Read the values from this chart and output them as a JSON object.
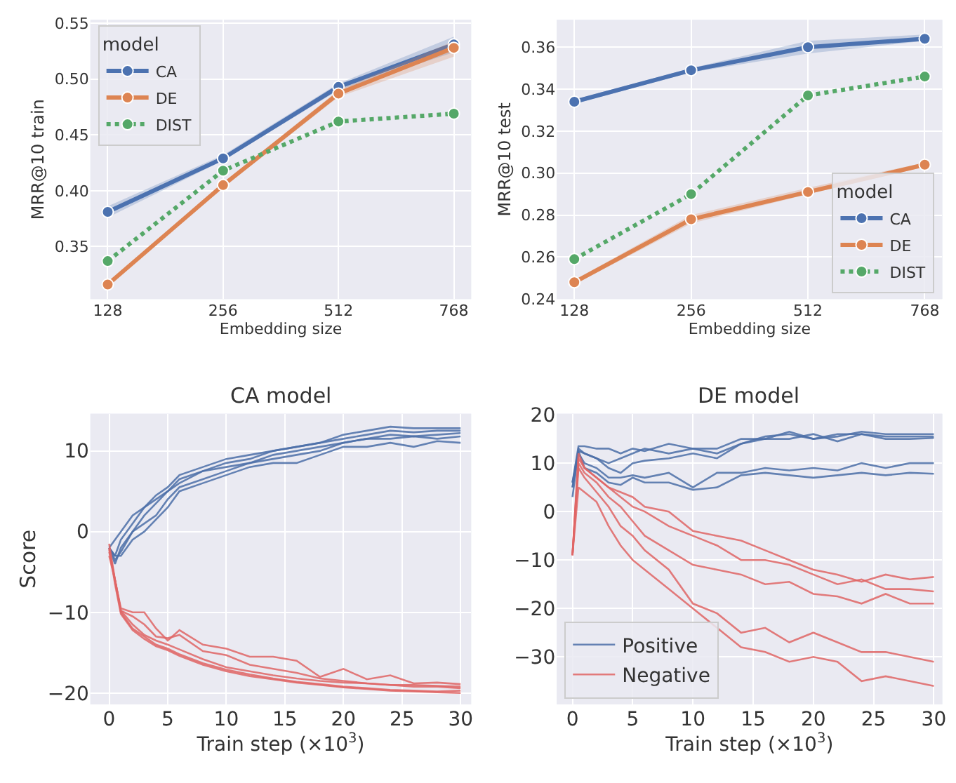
{
  "chart_data": [
    {
      "type": "line",
      "xlabel": "Embedding size",
      "ylabel": "MRR@10 train",
      "categories": [
        "128",
        "256",
        "512",
        "768"
      ],
      "ylim": [
        0.303,
        0.553
      ],
      "yticks": [
        0.35,
        {
          "value": 0.4,
          "label": "0.40"
        },
        0.45,
        {
          "value": 0.5,
          "label": "0.50"
        },
        0.55
      ],
      "grid": true,
      "marker": "circle",
      "legend": "top left",
      "legend_title": "model",
      "series": [
        {
          "name": "CA",
          "color": "#4c72b0",
          "line_style": "solid",
          "values": [
            0.381,
            0.429,
            0.493,
            0.531
          ],
          "lower": [
            0.376,
            0.427,
            0.49,
            0.524
          ],
          "upper": [
            0.386,
            0.432,
            0.496,
            0.538
          ]
        },
        {
          "name": "DE",
          "color": "#dd8452",
          "line_style": "solid",
          "values": [
            0.316,
            0.405,
            0.487,
            0.528
          ],
          "lower": [
            0.314,
            0.403,
            0.484,
            0.52
          ],
          "upper": [
            0.318,
            0.407,
            0.49,
            0.534
          ]
        },
        {
          "name": "DIST",
          "color": "#55a868",
          "line_style": "dotted",
          "values": [
            0.337,
            0.418,
            0.462,
            0.469
          ]
        }
      ]
    },
    {
      "type": "line",
      "xlabel": "Embedding size",
      "ylabel": "MRR@10 test",
      "categories": [
        "128",
        "256",
        "512",
        "768"
      ],
      "ylim": [
        0.24,
        0.373
      ],
      "yticks": [
        0.24,
        0.26,
        0.28,
        {
          "value": 0.3,
          "label": "0.30"
        },
        0.32,
        0.34,
        0.36
      ],
      "grid": true,
      "marker": "circle",
      "legend": "bottom right",
      "legend_title": "model",
      "series": [
        {
          "name": "CA",
          "color": "#4c72b0",
          "line_style": "solid",
          "values": [
            0.334,
            0.349,
            0.36,
            0.364
          ],
          "lower": [
            0.333,
            0.348,
            0.357,
            0.363
          ],
          "upper": [
            0.335,
            0.35,
            0.363,
            0.366
          ]
        },
        {
          "name": "DE",
          "color": "#dd8452",
          "line_style": "solid",
          "values": [
            0.248,
            0.278,
            0.291,
            0.304
          ],
          "lower": [
            0.247,
            0.276,
            0.29,
            0.303
          ],
          "upper": [
            0.249,
            0.28,
            0.293,
            0.305
          ]
        },
        {
          "name": "DIST",
          "color": "#55a868",
          "line_style": "dotted",
          "values": [
            0.259,
            0.29,
            0.337,
            0.346
          ]
        }
      ]
    },
    {
      "type": "line",
      "title": "CA model",
      "xlabel": "Train step (×10$^{3}$)",
      "ylabel": "Score",
      "x": [
        0,
        0.5,
        1,
        2,
        3,
        4,
        5,
        6,
        8,
        10,
        12,
        14,
        16,
        18,
        20,
        22,
        24,
        26,
        28,
        30
      ],
      "xlim": [
        -1.6,
        30.9
      ],
      "xticks": [
        0,
        5,
        10,
        15,
        20,
        25,
        30
      ],
      "ylim": [
        -21.4,
        14.6
      ],
      "yticks": [
        -20,
        -10,
        0,
        10
      ],
      "grid": true,
      "series": [
        {
          "color": "#4c6fa8",
          "values": [
            -2,
            -1,
            0,
            2,
            3,
            4.5,
            5.5,
            7,
            8,
            9,
            9.5,
            10,
            10.5,
            11,
            12,
            12.5,
            13,
            12.8,
            12.8,
            12.8
          ]
        },
        {
          "color": "#4c6fa8",
          "values": [
            -2,
            -3,
            -1,
            1,
            3,
            4,
            5,
            6.5,
            7.5,
            8.5,
            9,
            10,
            10.5,
            11,
            11.5,
            12,
            12.5,
            12.3,
            12.5,
            12.5
          ]
        },
        {
          "color": "#4c6fa8",
          "values": [
            -2,
            -4,
            -2,
            0,
            2,
            3.5,
            5,
            6,
            7.5,
            8,
            8.5,
            9.5,
            10,
            10.5,
            11,
            11.5,
            12,
            11.8,
            12,
            12.2
          ]
        },
        {
          "color": "#4c6fa8",
          "values": [
            -2,
            -3.5,
            -2.5,
            0,
            1,
            2,
            4,
            5.5,
            6.5,
            7.5,
            8.5,
            9,
            9.5,
            10,
            11,
            11.5,
            11.5,
            11.8,
            11.5,
            11.8
          ]
        },
        {
          "color": "#4c6fa8",
          "values": [
            -2,
            -3,
            -3,
            -1,
            0,
            1.5,
            3,
            5,
            6,
            7,
            8,
            8.5,
            8.5,
            9.5,
            10.5,
            10.5,
            11,
            10.5,
            11.2,
            11
          ]
        },
        {
          "color": "#e06666",
          "values": [
            -2.5,
            -6,
            -10,
            -12,
            -13,
            -14,
            -14.5,
            -15.2,
            -16.3,
            -17.1,
            -17.7,
            -18.2,
            -18.6,
            -18.9,
            -19.2,
            -19.4,
            -19.6,
            -19.7,
            -19.8,
            -19.7
          ]
        },
        {
          "color": "#e06666",
          "values": [
            -2,
            -6.5,
            -10.2,
            -12.2,
            -13.3,
            -14.2,
            -14.7,
            -15.4,
            -16.5,
            -17.3,
            -17.9,
            -18.3,
            -18.7,
            -19,
            -19.3,
            -19.5,
            -19.7,
            -19.8,
            -19.9,
            -20
          ]
        },
        {
          "color": "#e06666",
          "values": [
            -3,
            -6,
            -9.8,
            -11.5,
            -12.8,
            -13.5,
            -14,
            -14.6,
            -15.8,
            -16.8,
            -17.3,
            -17.8,
            -18.2,
            -18.5,
            -18.7,
            -18.8,
            -19,
            -19,
            -19.1,
            -19.2
          ]
        },
        {
          "color": "#e06666",
          "values": [
            -1.5,
            -6,
            -9.5,
            -10,
            -10,
            -12,
            -13.5,
            -12.2,
            -14,
            -14.5,
            -15.5,
            -15.5,
            -16,
            -18,
            -17,
            -18.3,
            -17.8,
            -18.8,
            -18.7,
            -18.9
          ]
        },
        {
          "color": "#e06666",
          "values": [
            -2.2,
            -6,
            -9.8,
            -10.5,
            -11.5,
            -13,
            -13.2,
            -12.8,
            -14.8,
            -15.3,
            -16.5,
            -17,
            -17.5,
            -18.2,
            -18.5,
            -18.8,
            -19,
            -19.2,
            -19.2,
            -19.4
          ]
        }
      ]
    },
    {
      "type": "line",
      "title": "DE model",
      "xlabel": "Train step (×10$^{3}$)",
      "x": [
        0,
        0.5,
        1,
        2,
        3,
        4,
        5,
        6,
        8,
        10,
        12,
        14,
        16,
        18,
        20,
        22,
        24,
        26,
        28,
        30
      ],
      "xlim": [
        -1.3,
        30.7
      ],
      "xticks": [
        0,
        5,
        10,
        15,
        20,
        25,
        30
      ],
      "ylim": [
        -39.8,
        20.2
      ],
      "yticks": [
        -30,
        -20,
        -10,
        0,
        10,
        20
      ],
      "grid": true,
      "legend": "bottom left",
      "series": [
        {
          "name": "Positive",
          "color": "#4c6fa8",
          "values": [
            6,
            13.5,
            13.5,
            13,
            13,
            12,
            13,
            12.5,
            14,
            13,
            12,
            14,
            15.5,
            16,
            15,
            15.5,
            16.5,
            16,
            16,
            16
          ]
        },
        {
          "color": "#4c6fa8",
          "values": [
            3,
            12.5,
            12,
            11,
            10,
            11,
            12,
            13,
            12,
            13,
            13,
            15,
            15,
            16.5,
            15,
            16,
            16,
            15.5,
            15.5,
            15.5
          ]
        },
        {
          "color": "#4c6fa8",
          "values": [
            5,
            13,
            12,
            11,
            9,
            8,
            10,
            10.5,
            11,
            12,
            11,
            14,
            15,
            15,
            16,
            14.5,
            16,
            15,
            15,
            15.2
          ]
        },
        {
          "color": "#4c6fa8",
          "values": [
            5,
            12,
            10,
            9,
            7,
            7,
            7.5,
            7,
            8,
            5,
            8,
            8,
            9,
            8.5,
            9,
            8.5,
            10,
            9,
            10,
            10
          ]
        },
        {
          "color": "#4c6fa8",
          "values": [
            6,
            12.5,
            9,
            8,
            6,
            5.5,
            7,
            6,
            6,
            4.5,
            5,
            7.5,
            8,
            7.5,
            7,
            7.5,
            8,
            7.5,
            8,
            7.8
          ]
        },
        {
          "name": "Negative",
          "color": "#e06666",
          "values": [
            -9,
            12,
            9,
            7,
            5,
            4,
            3,
            1,
            0,
            -4,
            -5,
            -6,
            -8,
            -10,
            -12,
            -13,
            -14.5,
            -13,
            -14,
            -13.5
          ]
        },
        {
          "color": "#e06666",
          "values": [
            -9,
            11,
            9,
            7,
            5,
            3,
            1,
            0,
            -3,
            -5,
            -7,
            -10,
            -10,
            -11,
            -13,
            -15,
            -14,
            -16,
            -16,
            -16.5
          ]
        },
        {
          "color": "#e06666",
          "values": [
            -9,
            10,
            8,
            6,
            3,
            1,
            -2,
            -5,
            -8,
            -11,
            -12,
            -13,
            -15,
            -14.5,
            -17,
            -17.5,
            -19,
            -17,
            -19,
            -19
          ]
        },
        {
          "color": "#e06666",
          "values": [
            -9,
            9,
            7,
            4,
            1,
            -3,
            -5,
            -8,
            -12,
            -19,
            -21,
            -25,
            -24,
            -27,
            -25,
            -27,
            -29,
            -29,
            -30,
            -31
          ]
        },
        {
          "color": "#e06666",
          "values": [
            -9,
            5,
            4,
            2,
            -3,
            -7,
            -10,
            -12,
            -16,
            -20,
            -24,
            -28,
            -29,
            -31,
            -30,
            -31,
            -35,
            -34,
            -35,
            -36
          ]
        }
      ]
    }
  ]
}
